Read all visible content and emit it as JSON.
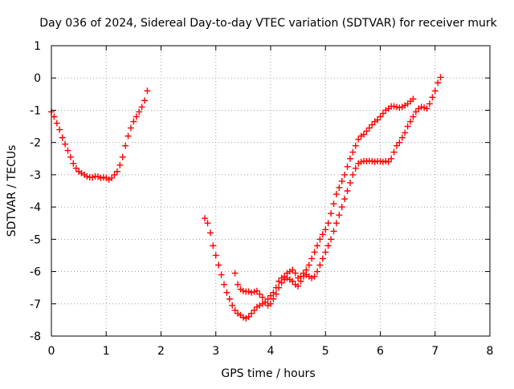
{
  "chart_data": {
    "type": "scatter",
    "title": "Day 036 of 2024, Sidereal Day-to-day VTEC variation (SDTVAR) for receiver murk",
    "xlabel": "GPS time / hours",
    "ylabel": "SDTVAR / TECUs",
    "xlim": [
      0,
      8
    ],
    "ylim": [
      -8,
      1
    ],
    "x_ticks": [
      "0",
      "1",
      "2",
      "3",
      "4",
      "5",
      "6",
      "7",
      "8"
    ],
    "y_ticks": [
      "1",
      "0",
      "-1",
      "-2",
      "-3",
      "-4",
      "-5",
      "-6",
      "-7",
      "-8"
    ],
    "grid": true,
    "legend": "none",
    "marker": "plus",
    "series_color": "#ff0000",
    "series": [
      {
        "x": [
          0.0,
          0.05,
          0.1,
          0.15,
          0.2,
          0.25,
          0.3,
          0.35,
          0.4,
          0.45,
          0.5,
          0.55,
          0.6,
          0.65,
          0.7,
          0.75,
          0.8,
          0.85,
          0.9,
          0.95,
          1.0,
          1.05,
          1.1,
          1.15,
          1.2,
          1.25,
          1.3,
          1.35,
          1.4,
          1.45,
          1.5,
          1.55,
          1.6,
          1.65,
          1.7,
          1.75
        ],
        "y": [
          -1.05,
          -1.2,
          -1.4,
          -1.6,
          -1.85,
          -2.05,
          -2.25,
          -2.45,
          -2.65,
          -2.8,
          -2.9,
          -2.95,
          -3.0,
          -3.05,
          -3.08,
          -3.08,
          -3.05,
          -3.06,
          -3.1,
          -3.08,
          -3.1,
          -3.15,
          -3.1,
          -3.0,
          -2.9,
          -2.7,
          -2.45,
          -2.1,
          -1.8,
          -1.55,
          -1.35,
          -1.2,
          -1.05,
          -0.9,
          -0.7,
          -0.4
        ]
      },
      {
        "x": [
          2.8,
          2.85,
          2.9,
          2.95,
          3.0,
          3.05,
          3.1,
          3.15,
          3.2,
          3.25,
          3.3,
          3.35,
          3.4,
          3.45,
          3.5,
          3.55,
          3.6,
          3.65,
          3.7,
          3.75,
          3.8,
          3.85,
          3.9,
          3.95,
          4.0,
          4.05,
          4.1,
          4.15,
          4.2,
          4.25,
          4.3,
          4.35,
          4.4,
          4.45,
          4.5,
          4.55,
          4.6,
          4.65,
          4.7,
          4.75,
          4.8,
          4.85,
          4.9,
          4.95,
          5.0,
          5.05,
          5.1,
          5.15,
          5.2,
          5.25,
          5.3,
          5.35,
          5.4,
          5.45,
          5.5,
          5.55,
          5.6,
          5.65,
          5.7,
          5.75,
          5.8,
          5.85,
          5.9,
          5.95,
          6.0,
          6.05,
          6.1,
          6.15,
          6.2,
          6.25,
          6.3,
          6.35,
          6.4,
          6.45,
          6.5,
          6.55,
          6.6
        ],
        "y": [
          -4.35,
          -4.5,
          -4.8,
          -5.2,
          -5.5,
          -5.8,
          -6.1,
          -6.4,
          -6.65,
          -6.85,
          -7.05,
          -7.2,
          -7.3,
          -7.35,
          -7.42,
          -7.45,
          -7.4,
          -7.3,
          -7.2,
          -7.1,
          -7.05,
          -7.0,
          -6.95,
          -6.85,
          -6.75,
          -6.65,
          -6.5,
          -6.3,
          -6.2,
          -6.15,
          -6.05,
          -6.0,
          -5.95,
          -6.05,
          -6.2,
          -6.15,
          -6.05,
          -5.95,
          -5.8,
          -5.6,
          -5.4,
          -5.2,
          -5.0,
          -4.85,
          -4.7,
          -4.5,
          -4.2,
          -3.9,
          -3.6,
          -3.4,
          -3.2,
          -3.0,
          -2.75,
          -2.5,
          -2.3,
          -2.1,
          -1.9,
          -1.8,
          -1.75,
          -1.65,
          -1.55,
          -1.45,
          -1.35,
          -1.3,
          -1.2,
          -1.1,
          -1.0,
          -0.95,
          -0.88,
          -0.88,
          -0.9,
          -0.92,
          -0.9,
          -0.85,
          -0.8,
          -0.72,
          -0.65
        ]
      },
      {
        "x": [
          3.35,
          3.4,
          3.45,
          3.5,
          3.55,
          3.6,
          3.65,
          3.7,
          3.75,
          3.8,
          3.85,
          3.9,
          3.95,
          4.0,
          4.05,
          4.1,
          4.15,
          4.2,
          4.25,
          4.3,
          4.35,
          4.4,
          4.45,
          4.5,
          4.55,
          4.6,
          4.65,
          4.7,
          4.75,
          4.8,
          4.85,
          4.9,
          4.95,
          5.0,
          5.05,
          5.1,
          5.15,
          5.2,
          5.25,
          5.3,
          5.35,
          5.4,
          5.45,
          5.5,
          5.55,
          5.6,
          5.65,
          5.7,
          5.75,
          5.8,
          5.85,
          5.9,
          5.95,
          6.0,
          6.05,
          6.1,
          6.15,
          6.2,
          6.25,
          6.3,
          6.35,
          6.4,
          6.45,
          6.5,
          6.55,
          6.6,
          6.65,
          6.7,
          6.75,
          6.8,
          6.85,
          6.9,
          6.95,
          7.0,
          7.05,
          7.1
        ],
        "y": [
          -6.05,
          -6.4,
          -6.55,
          -6.6,
          -6.62,
          -6.62,
          -6.65,
          -6.63,
          -6.6,
          -6.7,
          -6.8,
          -6.95,
          -7.05,
          -7.0,
          -6.85,
          -6.7,
          -6.5,
          -6.35,
          -6.25,
          -6.2,
          -6.25,
          -6.3,
          -6.4,
          -6.45,
          -6.3,
          -6.15,
          -6.1,
          -6.15,
          -6.2,
          -6.15,
          -6.0,
          -5.8,
          -5.6,
          -5.4,
          -5.2,
          -5.0,
          -4.75,
          -4.5,
          -4.25,
          -4.0,
          -3.75,
          -3.5,
          -3.25,
          -3.0,
          -2.8,
          -2.65,
          -2.6,
          -2.58,
          -2.58,
          -2.57,
          -2.58,
          -2.6,
          -2.58,
          -2.58,
          -2.6,
          -2.58,
          -2.6,
          -2.5,
          -2.3,
          -2.1,
          -2.0,
          -1.85,
          -1.7,
          -1.5,
          -1.35,
          -1.2,
          -1.05,
          -0.95,
          -0.9,
          -0.92,
          -0.95,
          -0.8,
          -0.6,
          -0.4,
          -0.15,
          0.02
        ]
      }
    ]
  }
}
